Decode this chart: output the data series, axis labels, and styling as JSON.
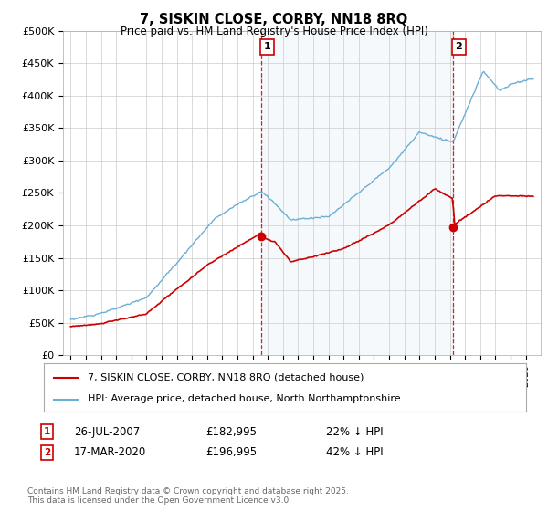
{
  "title": "7, SISKIN CLOSE, CORBY, NN18 8RQ",
  "subtitle": "Price paid vs. HM Land Registry's House Price Index (HPI)",
  "ylabel_ticks": [
    "£0",
    "£50K",
    "£100K",
    "£150K",
    "£200K",
    "£250K",
    "£300K",
    "£350K",
    "£400K",
    "£450K",
    "£500K"
  ],
  "ytick_values": [
    0,
    50000,
    100000,
    150000,
    200000,
    250000,
    300000,
    350000,
    400000,
    450000,
    500000
  ],
  "ylim": [
    0,
    500000
  ],
  "sale1_x": 2007.567,
  "sale1_price": 182995,
  "sale2_x": 2020.208,
  "sale2_price": 196995,
  "sale1_date": "26-JUL-2007",
  "sale2_date": "17-MAR-2020",
  "sale1_pct": "22% ↓ HPI",
  "sale2_pct": "42% ↓ HPI",
  "legend_line1": "7, SISKIN CLOSE, CORBY, NN18 8RQ (detached house)",
  "legend_line2": "HPI: Average price, detached house, North Northamptonshire",
  "footnote": "Contains HM Land Registry data © Crown copyright and database right 2025.\nThis data is licensed under the Open Government Licence v3.0.",
  "hpi_color": "#6baed6",
  "price_color": "#cc0000",
  "shade_color": "#daeaf5",
  "background_color": "#ffffff",
  "grid_color": "#cccccc"
}
